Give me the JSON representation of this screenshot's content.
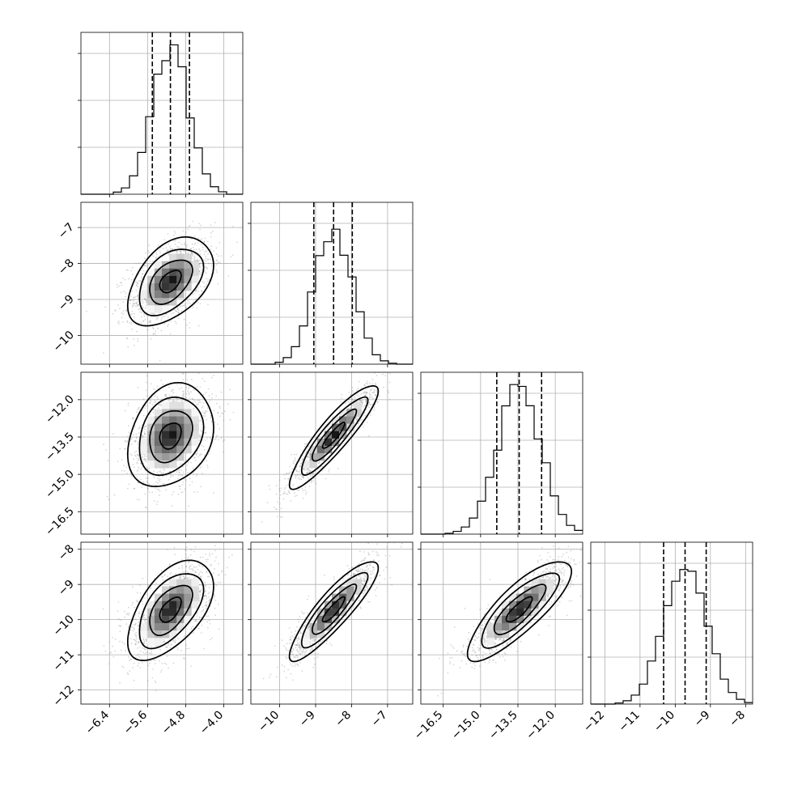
{
  "chart_data": {
    "type": "corner",
    "n_params": 4,
    "parameters": [
      {
        "index": 0,
        "range": [
          -7.0,
          -3.6
        ],
        "ticks": [
          -6.4,
          -5.6,
          -4.8,
          -4.0
        ],
        "tick_labels": [
          "−6.4",
          "−5.6",
          "−4.8",
          "−4.0"
        ],
        "median": -5.12,
        "q16": -5.5,
        "q84": -4.72,
        "sigma": 0.38
      },
      {
        "index": 1,
        "range": [
          -10.8,
          -6.3
        ],
        "ticks": [
          -10,
          -9,
          -8,
          -7
        ],
        "tick_labels": [
          "−10",
          "−9",
          "−8",
          "−7"
        ],
        "median": -8.5,
        "q16": -9.05,
        "q84": -7.98,
        "sigma": 0.52
      },
      {
        "index": 2,
        "range": [
          -17.4,
          -10.9
        ],
        "ticks": [
          -16.5,
          -15.0,
          -13.5,
          -12.0
        ],
        "tick_labels": [
          "−16.5",
          "−15.0",
          "−13.5",
          "−12.0"
        ],
        "median": -13.45,
        "q16": -14.35,
        "q84": -12.55,
        "sigma": 0.88
      },
      {
        "index": 3,
        "range": [
          -12.4,
          -7.8
        ],
        "ticks": [
          -12,
          -11,
          -10,
          -9,
          -8
        ],
        "tick_labels": [
          "−12",
          "−11",
          "−10",
          "−9",
          "−8"
        ],
        "median": -9.72,
        "q16": -10.33,
        "q84": -9.12,
        "sigma": 0.6
      }
    ],
    "hist_peak_fraction": [
      0.91,
      0.84,
      0.9,
      0.89
    ],
    "correlations": {
      "1-0": 0.45,
      "2-0": 0.25,
      "2-1": 0.9,
      "3-0": 0.55,
      "3-1": 0.88,
      "3-2": 0.82
    },
    "contour_levels_sigma": [
      0.5,
      1.0,
      1.5,
      2.0
    ],
    "grid": true
  },
  "colors": {
    "ink": "#000000",
    "grid": "#b0b0b0",
    "scatter": "#8c8c8c"
  }
}
